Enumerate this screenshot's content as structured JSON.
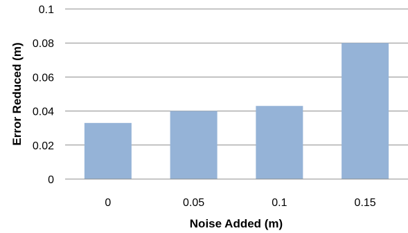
{
  "chart_data": {
    "type": "bar",
    "title": "",
    "xlabel": "Noise Added (m)",
    "ylabel": "Error Reduced (m)",
    "categories": [
      "0",
      "0.05",
      "0.1",
      "0.15"
    ],
    "values": [
      0.033,
      0.04,
      0.043,
      0.08
    ],
    "ylim": [
      0,
      0.1
    ],
    "yticks": [
      0,
      0.02,
      0.04,
      0.06,
      0.08,
      0.1
    ],
    "ytick_labels": [
      "0",
      "0.02",
      "0.04",
      "0.06",
      "0.08",
      "0.1"
    ],
    "grid": true,
    "legend": "none",
    "bar_color": "#95b3d7"
  }
}
